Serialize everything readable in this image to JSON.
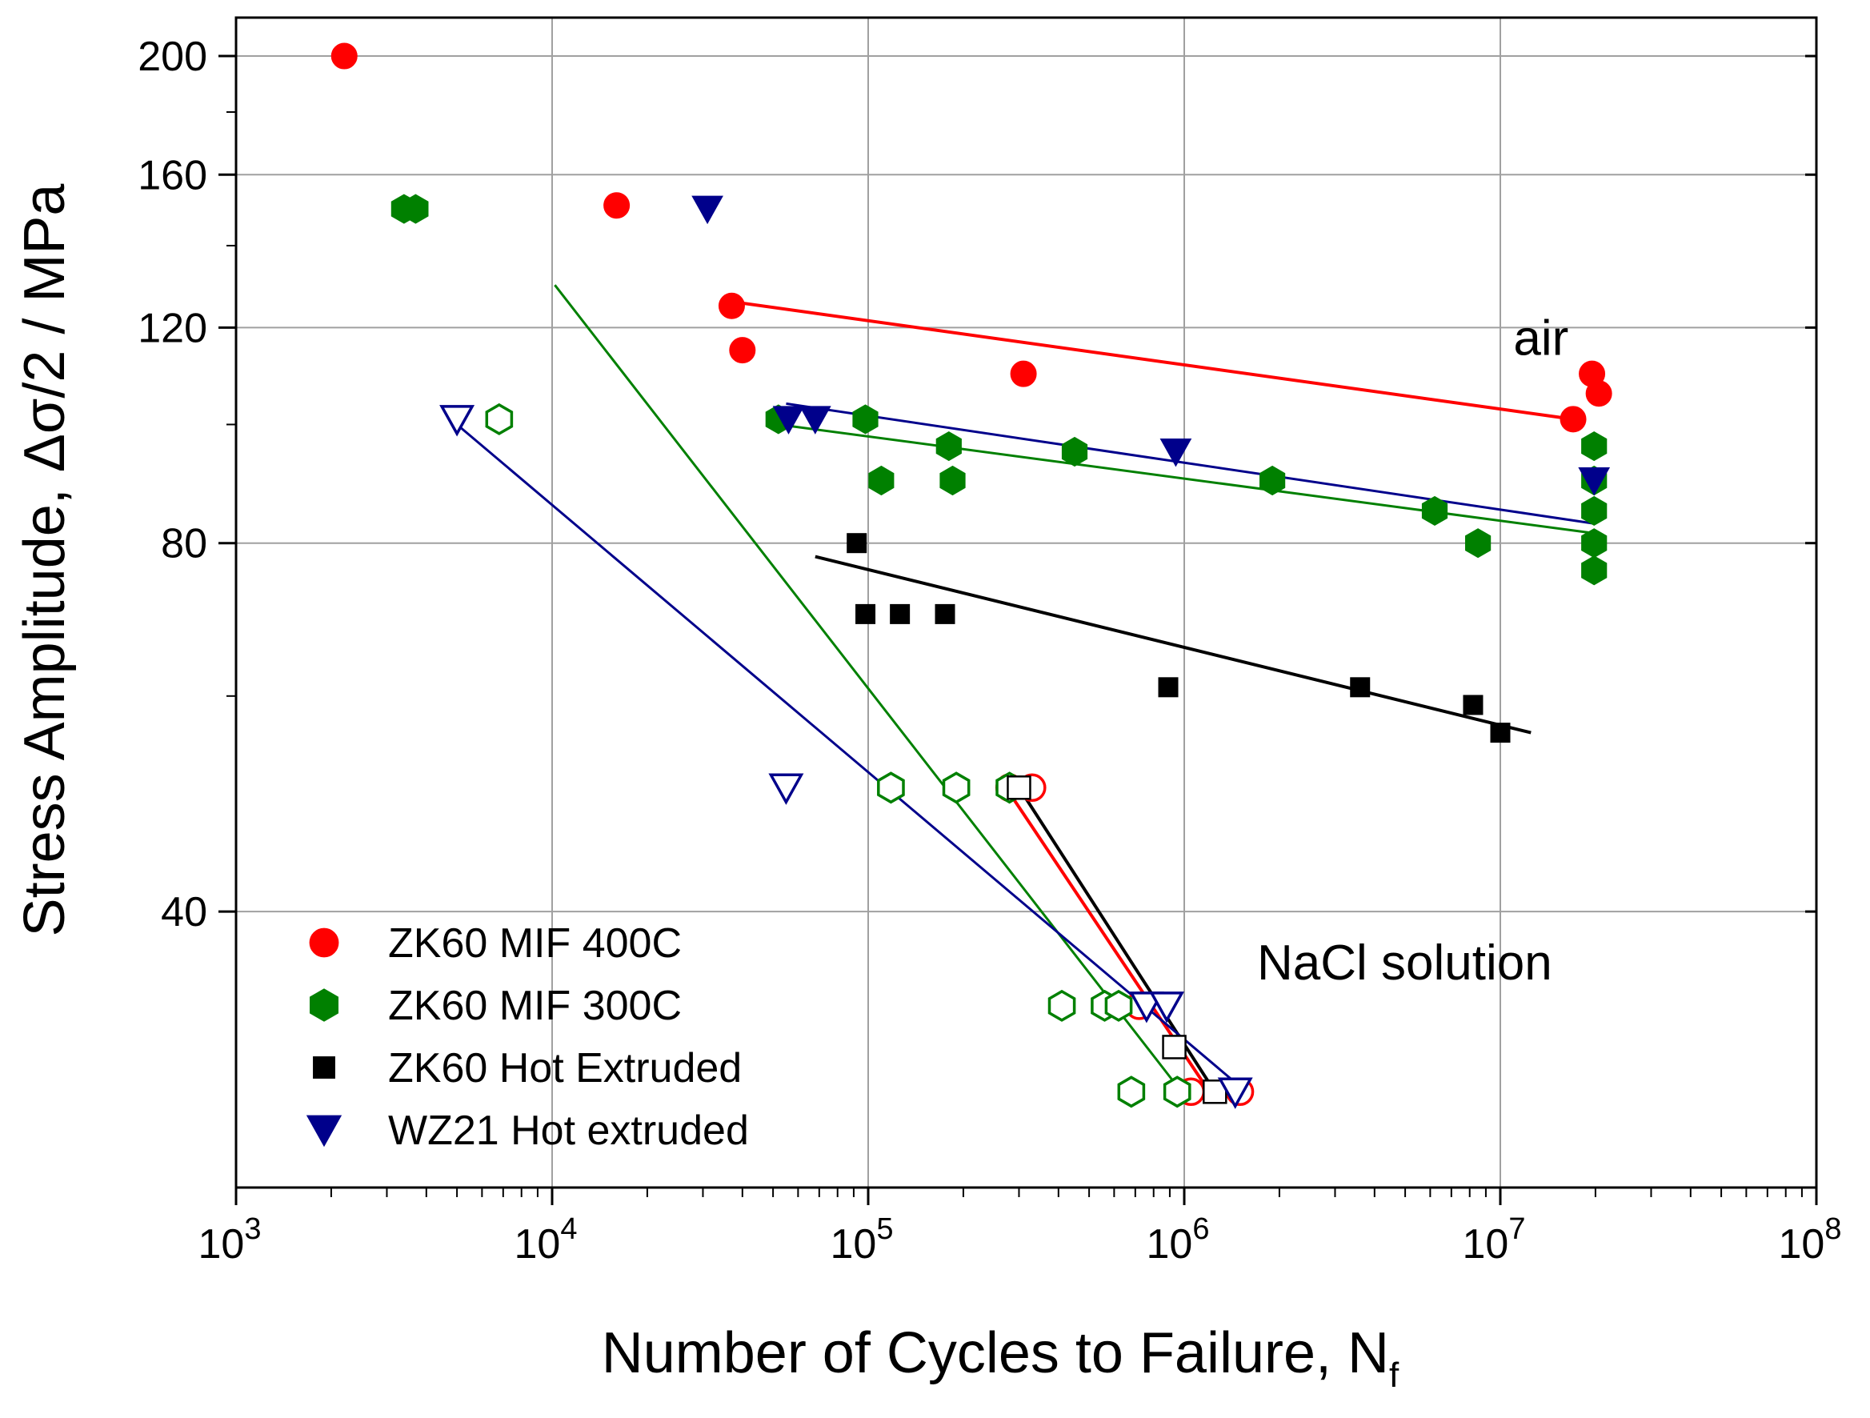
{
  "chart_data": {
    "type": "scatter",
    "title": "",
    "xlabel": "Number of Cycles to Failure, N",
    "xlabel_sub": "f",
    "ylabel": "Stress Amplitude, Δσ/2 / MPa",
    "x_scale": "log",
    "y_scale": "log",
    "xlim": [
      1000,
      100000000
    ],
    "ylim": [
      23.8,
      215
    ],
    "x_ticks": [
      {
        "value": 1000,
        "base": "10",
        "exp": "3"
      },
      {
        "value": 10000,
        "base": "10",
        "exp": "4"
      },
      {
        "value": 100000,
        "base": "10",
        "exp": "5"
      },
      {
        "value": 1000000,
        "base": "10",
        "exp": "6"
      },
      {
        "value": 10000000,
        "base": "10",
        "exp": "7"
      },
      {
        "value": 100000000,
        "base": "10",
        "exp": "8"
      }
    ],
    "y_ticks": [
      {
        "value": 40,
        "label": "40"
      },
      {
        "value": 80,
        "label": "80"
      },
      {
        "value": 120,
        "label": "120"
      },
      {
        "value": 160,
        "label": "160"
      },
      {
        "value": 200,
        "label": "200"
      }
    ],
    "grid": true,
    "legend_position": "bottom-left",
    "annotations": [
      {
        "text": "air",
        "x": 11000000,
        "y": 114
      },
      {
        "text": "NaCl solution",
        "x": 1700000,
        "y": 35.2
      }
    ],
    "series": [
      {
        "name": "ZK60 MIF 400C",
        "color": "#ff0000",
        "marker": "circle",
        "points_air": [
          [
            2200,
            200
          ],
          [
            16000,
            151
          ],
          [
            37000,
            125
          ],
          [
            40000,
            115
          ],
          [
            310000,
            110
          ],
          [
            17000000,
            101
          ],
          [
            19500000,
            110
          ],
          [
            20500000,
            106
          ]
        ],
        "points_nacl": [
          [
            280000,
            50.5
          ],
          [
            330000,
            50.5
          ],
          [
            720000,
            33.5
          ],
          [
            1050000,
            28.5
          ],
          [
            1500000,
            28.5
          ]
        ],
        "fit_air": [
          [
            37000,
            126
          ],
          [
            17000000,
            101
          ]
        ],
        "fit_nacl": [
          [
            280000,
            50
          ],
          [
            1200000,
            28.5
          ]
        ]
      },
      {
        "name": "ZK60 MIF 300C",
        "color": "#008000",
        "marker": "hexagon",
        "points_air": [
          [
            3400,
            150
          ],
          [
            3700,
            150
          ],
          [
            52000,
            101
          ],
          [
            98000,
            101
          ],
          [
            110000,
            90
          ],
          [
            180000,
            96
          ],
          [
            185000,
            90
          ],
          [
            450000,
            95
          ],
          [
            1900000,
            90
          ],
          [
            6200000,
            85
          ],
          [
            8500000,
            80
          ],
          [
            19800000,
            96
          ],
          [
            19800000,
            90
          ],
          [
            19800000,
            85
          ],
          [
            19800000,
            80
          ],
          [
            19800000,
            76
          ]
        ],
        "points_nacl": [
          [
            6800,
            101
          ],
          [
            118000,
            50.5
          ],
          [
            190000,
            50.5
          ],
          [
            280000,
            50.5
          ],
          [
            410000,
            33.5
          ],
          [
            560000,
            33.5
          ],
          [
            620000,
            33.5
          ],
          [
            680000,
            28.5
          ],
          [
            950000,
            28.5
          ]
        ],
        "fit_air": [
          [
            52000,
            100
          ],
          [
            19800000,
            81.5
          ]
        ],
        "fit_nacl": [
          [
            10200,
            130
          ],
          [
            930000,
            29
          ]
        ]
      },
      {
        "name": "ZK60 Hot Extruded",
        "color": "#000000",
        "marker": "square",
        "points_air": [
          [
            92000,
            80
          ],
          [
            98000,
            70
          ],
          [
            126000,
            70
          ],
          [
            175000,
            70
          ],
          [
            890000,
            61
          ],
          [
            3600000,
            61
          ],
          [
            8200000,
            59
          ],
          [
            10000000,
            56
          ]
        ],
        "points_nacl": [
          [
            300000,
            50.5
          ],
          [
            930000,
            31
          ],
          [
            1250000,
            28.5
          ]
        ],
        "fit_air": [
          [
            68000,
            78
          ],
          [
            12500000,
            56
          ]
        ],
        "fit_nacl": [
          [
            300000,
            50.5
          ],
          [
            1250000,
            28.5
          ]
        ]
      },
      {
        "name": "WZ21 Hot extruded",
        "color": "#00008b",
        "marker": "triangle-down",
        "points_air": [
          [
            31000,
            150
          ],
          [
            56000,
            101
          ],
          [
            68000,
            101
          ],
          [
            940000,
            95
          ],
          [
            19800000,
            90
          ]
        ],
        "points_nacl": [
          [
            5000,
            101
          ],
          [
            55000,
            50.5
          ],
          [
            760000,
            33.5
          ],
          [
            880000,
            33.5
          ],
          [
            1450000,
            28.5
          ]
        ],
        "fit_air": [
          [
            55000,
            104
          ],
          [
            19800000,
            83
          ]
        ],
        "fit_nacl": [
          [
            5000,
            100
          ],
          [
            1450000,
            29
          ]
        ]
      }
    ]
  }
}
